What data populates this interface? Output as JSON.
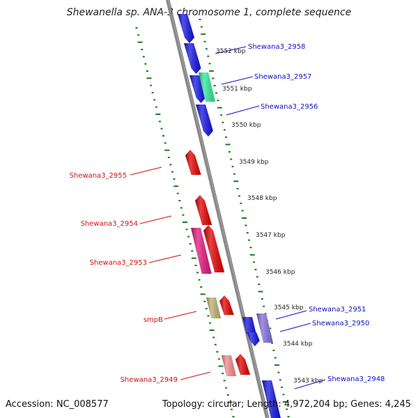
{
  "title": "Shewanella sp. ANA-3 chromosome 1, complete sequence",
  "accession_text": "Accession: NC_008577",
  "stats_text": "Topology: circular; Length: 4,972,204 bp; Genes: 4,245",
  "colors": {
    "forward_gene": "#1414e0",
    "reverse_gene": "#e00000",
    "pink_gene": "#e0187c",
    "light_red_gene": "#f08a8a",
    "green_gene": "#2ee89a",
    "olive_gene": "#bdb070",
    "gray_gene": "#606070",
    "lavender_gene": "#8070d8",
    "backbone": "#8a8a8a",
    "tick": "#1a7a1a",
    "forward_label": "#1010c0",
    "reverse_label": "#d01010"
  },
  "kbp_ticks": [
    "3552 kbp",
    "3551 kbp",
    "3550 kbp",
    "3549 kbp",
    "3548 kbp",
    "3547 kbp",
    "3546 kbp",
    "3545 kbp",
    "3544 kbp",
    "3543 kbp"
  ],
  "forward_labels": [
    "Shewana3_2958",
    "Shewana3_2957",
    "Shewana3_2956",
    "Shewana3_2951",
    "Shewana3_2950",
    "Shewana3_2948"
  ],
  "reverse_labels": [
    "Shewana3_2955",
    "Shewana3_2954",
    "Shewana3_2953",
    "smpB",
    "Shewana3_2949"
  ]
}
